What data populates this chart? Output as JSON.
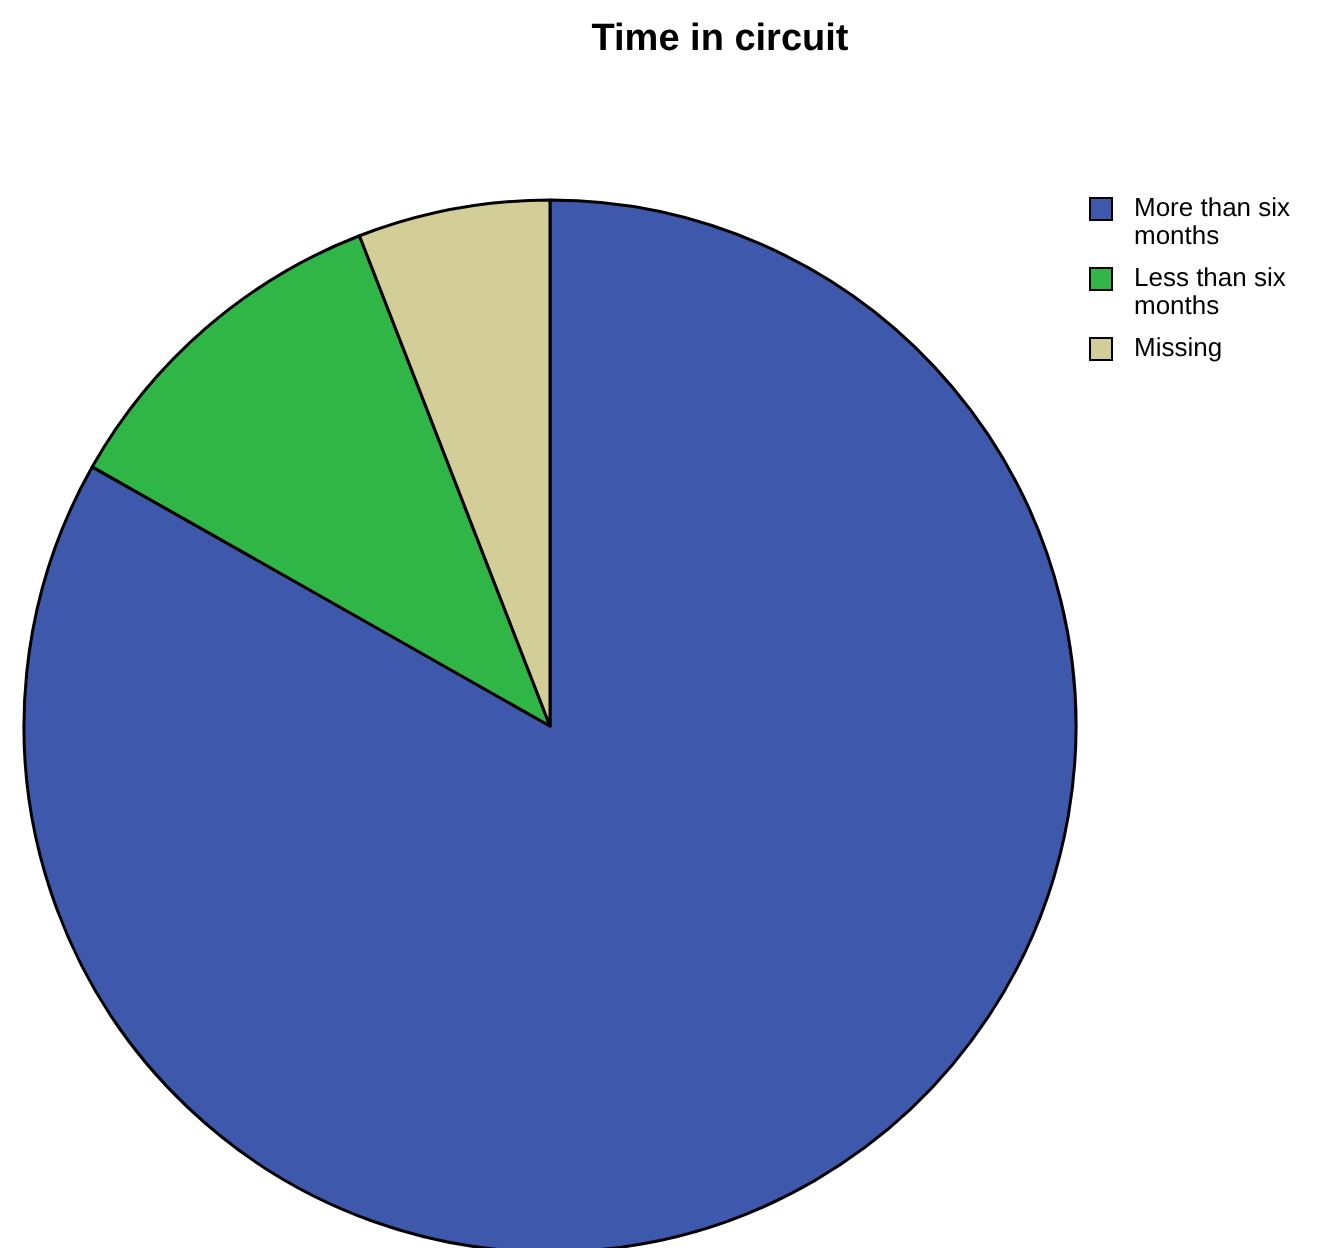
{
  "chart_data": {
    "type": "pie",
    "title": "Time in circuit",
    "categories": [
      "More than six months",
      "Less than six months",
      "Missing"
    ],
    "values": [
      83.2,
      10.9,
      5.9
    ],
    "colors": [
      "#3e58ac",
      "#30b647",
      "#d3ce97"
    ],
    "legend": "top right"
  }
}
